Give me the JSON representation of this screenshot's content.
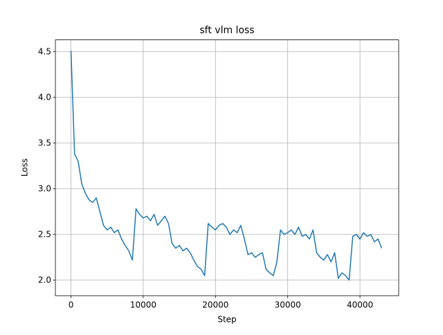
{
  "chart_data": {
    "type": "line",
    "title": "sft vlm loss",
    "xlabel": "Step",
    "ylabel": "Loss",
    "x": [
      0,
      500,
      1000,
      1500,
      2000,
      2500,
      3000,
      3500,
      4000,
      4500,
      5000,
      5500,
      6000,
      6500,
      7000,
      7500,
      8000,
      8500,
      9000,
      9500,
      10000,
      10500,
      11000,
      11500,
      12000,
      12500,
      13000,
      13500,
      14000,
      14500,
      15000,
      15500,
      16000,
      16500,
      17000,
      17500,
      18000,
      18500,
      19000,
      19500,
      20000,
      20500,
      21000,
      21500,
      22000,
      22500,
      23000,
      23500,
      24000,
      24500,
      25000,
      25500,
      26000,
      26500,
      27000,
      27500,
      28000,
      28500,
      29000,
      29500,
      30000,
      30500,
      31000,
      31500,
      32000,
      32500,
      33000,
      33500,
      34000,
      34500,
      35000,
      35500,
      36000,
      36500,
      37000,
      37500,
      38000,
      38500,
      39000,
      39500,
      40000,
      40500,
      41000,
      41500,
      42000,
      42500,
      43000
    ],
    "series": [
      {
        "name": "loss",
        "color": "#1f77b4",
        "values": [
          4.51,
          3.38,
          3.3,
          3.05,
          2.95,
          2.88,
          2.85,
          2.9,
          2.75,
          2.6,
          2.55,
          2.58,
          2.52,
          2.55,
          2.45,
          2.38,
          2.32,
          2.22,
          2.78,
          2.72,
          2.68,
          2.7,
          2.65,
          2.72,
          2.6,
          2.65,
          2.7,
          2.62,
          2.4,
          2.35,
          2.38,
          2.32,
          2.35,
          2.3,
          2.22,
          2.15,
          2.12,
          2.05,
          2.62,
          2.58,
          2.55,
          2.6,
          2.62,
          2.58,
          2.5,
          2.55,
          2.52,
          2.6,
          2.45,
          2.28,
          2.3,
          2.25,
          2.28,
          2.3,
          2.12,
          2.08,
          2.05,
          2.2,
          2.55,
          2.5,
          2.52,
          2.55,
          2.5,
          2.58,
          2.48,
          2.5,
          2.45,
          2.55,
          2.3,
          2.25,
          2.22,
          2.28,
          2.2,
          2.3,
          2.02,
          2.08,
          2.05,
          2.0,
          2.48,
          2.5,
          2.45,
          2.52,
          2.48,
          2.5,
          2.42,
          2.45,
          2.35
        ]
      }
    ],
    "xlim": [
      -2160,
      45360
    ],
    "xticks": [
      0,
      10000,
      20000,
      30000,
      40000
    ],
    "ylim": [
      1.83,
      4.63
    ],
    "yticks": [
      {
        "value": 2,
        "label": "2.0"
      },
      2.5,
      {
        "value": 3,
        "label": "3.0"
      },
      3.5,
      {
        "value": 4,
        "label": "4.0"
      },
      4.5
    ],
    "grid": true
  }
}
